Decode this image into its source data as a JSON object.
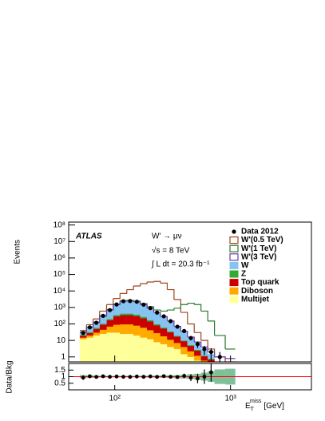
{
  "chart_data": [
    {
      "type": "histogram",
      "y_label": "Events",
      "x_label": [
        "E",
        "T",
        "miss",
        "[GeV]"
      ],
      "annotations": [
        "ATLAS",
        "W' → μν",
        "√s = 8 TeV",
        "∫ L dt = 20.3 fb⁻¹"
      ],
      "log_x": true,
      "log_y": true,
      "legend": "upper right",
      "xlim": [
        40,
        5000
      ],
      "xticks": [
        {
          "value": 100,
          "label": "10²"
        },
        {
          "value": 1000,
          "label": "10³"
        }
      ],
      "ylim": [
        0.5,
        150000000
      ],
      "yticks": [
        1,
        10,
        {
          "value": 100,
          "label": "10²"
        },
        {
          "value": 1000,
          "label": "10³"
        },
        {
          "value": 10000,
          "label": "10⁴"
        },
        {
          "value": 100000,
          "label": "10⁵"
        },
        {
          "value": 1000000,
          "label": "10⁶"
        },
        {
          "value": 10000000,
          "label": "10⁷"
        },
        {
          "value": 100000000,
          "label": "10⁸"
        }
      ],
      "bins": [
        50,
        57,
        65,
        74,
        85,
        97,
        111,
        127,
        145,
        166,
        190,
        217,
        248,
        284,
        325,
        372,
        425,
        486,
        556,
        636,
        727,
        900,
        1100
      ],
      "stacked_series": [
        {
          "name": "Multijet",
          "color": "#ffff99",
          "values": [
            12,
            15,
            20,
            25,
            30,
            30,
            25,
            25,
            20,
            15,
            12,
            8,
            6,
            4,
            3,
            1.5,
            1,
            0.6,
            0.3,
            0.2,
            0,
            0
          ]
        },
        {
          "name": "Diboson",
          "color": "#ffaa00",
          "values": [
            3,
            5,
            10,
            20,
            40,
            60,
            70,
            70,
            60,
            45,
            30,
            20,
            12,
            7,
            4,
            2.5,
            1.2,
            0.6,
            0.3,
            0.2,
            0,
            0
          ]
        },
        {
          "name": "Top quark",
          "color": "#cc0000",
          "values": [
            4,
            8,
            20,
            45,
            100,
            200,
            250,
            250,
            220,
            160,
            100,
            55,
            35,
            20,
            10,
            5,
            2.5,
            1.2,
            0.5,
            0.3,
            0,
            0
          ]
        },
        {
          "name": "Z",
          "color": "#33aa33",
          "values": [
            2,
            4,
            8,
            15,
            30,
            60,
            80,
            80,
            70,
            50,
            30,
            15,
            8,
            4,
            2,
            1,
            0.5,
            0.3,
            0.1,
            0.05,
            0,
            0
          ]
        },
        {
          "name": "W",
          "color": "#87c3f0",
          "values": [
            9,
            28,
            62,
            195,
            500,
            1150,
            1975,
            2075,
            1830,
            1230,
            728,
            402,
            219,
            115,
            51,
            25,
            9.8,
            4.3,
            1.8,
            0.75,
            0,
            0
          ]
        }
      ],
      "line_series": [
        {
          "name": "W'(0.5 TeV)",
          "color": "#a0461e",
          "values": [
            40,
            90,
            200,
            600,
            1500,
            3500,
            7000,
            12000,
            20000,
            28000,
            35000,
            38000,
            30000,
            12000,
            3000,
            500,
            100,
            30,
            10,
            3,
            1,
            0.5
          ]
        },
        {
          "name": "W'(1 TeV)",
          "color": "#2a7a2a",
          "values": [
            32,
            65,
            130,
            320,
            750,
            1600,
            2600,
            2700,
            2400,
            1700,
            1100,
            700,
            600,
            700,
            900,
            1500,
            1800,
            1500,
            600,
            150,
            20,
            3
          ]
        },
        {
          "name": "W'(3 TeV)",
          "color": "#6a3caa",
          "values": [
            31,
            61,
            121,
            301,
            701,
            1501,
            2401,
            2501,
            2201,
            1501,
            901,
            501,
            281,
            151,
            71,
            36,
            16,
            8,
            4,
            2,
            1,
            0.8
          ]
        }
      ],
      "data_series": {
        "name": "Data 2012",
        "color": "#000000",
        "values": [
          28,
          62,
          118,
          310,
          690,
          1520,
          2380,
          2450,
          2230,
          1480,
          920,
          490,
          290,
          148,
          68,
          37,
          14,
          6,
          3,
          2,
          1,
          0
        ],
        "errors": [
          5,
          8,
          11,
          18,
          26,
          39,
          49,
          49,
          47,
          38,
          30,
          22,
          17,
          12,
          8,
          6,
          4,
          2.5,
          1.7,
          1.4,
          1,
          0
        ]
      }
    },
    {
      "type": "ratio",
      "y_label": "Data/Bkg",
      "ylim": [
        0,
        2
      ],
      "yticks": [
        0.5,
        1,
        1.5
      ],
      "reference_color": "#ff0000",
      "band_color": "#7fbf9a",
      "values": [
        0.93,
        1.03,
        0.98,
        1.03,
        0.99,
        1.01,
        0.99,
        0.98,
        1.01,
        0.99,
        1.02,
        0.98,
        1.04,
        0.99,
        0.97,
        1.06,
        0.93,
        0.86,
        1.0,
        1.33,
        null,
        null
      ],
      "errors": [
        0.17,
        0.13,
        0.09,
        0.06,
        0.04,
        0.03,
        0.02,
        0.02,
        0.02,
        0.03,
        0.03,
        0.04,
        0.06,
        0.08,
        0.12,
        0.17,
        0.27,
        0.36,
        0.55,
        0.7,
        null,
        null
      ],
      "band": [
        0.12,
        0.1,
        0.08,
        0.07,
        0.06,
        0.06,
        0.06,
        0.06,
        0.06,
        0.07,
        0.07,
        0.08,
        0.09,
        0.1,
        0.12,
        0.14,
        0.18,
        0.22,
        0.3,
        0.4,
        0.55,
        0.6
      ]
    }
  ]
}
